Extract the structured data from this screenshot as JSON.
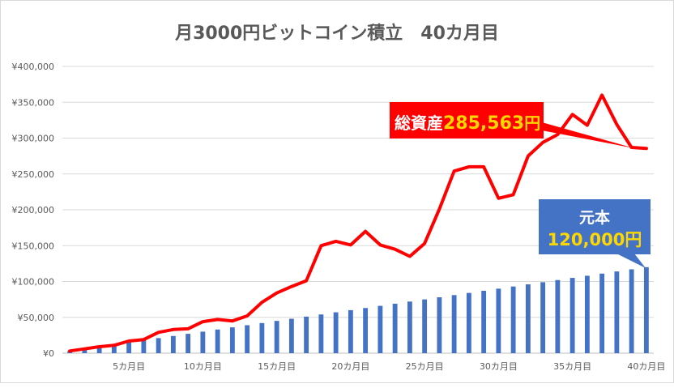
{
  "chart_data": {
    "type": "bar+line",
    "title": "月3000円ビットコイン積立　40カ月目",
    "ylim": [
      0,
      400000
    ],
    "yticks": [
      {
        "value": 0,
        "label": "¥0"
      },
      {
        "value": 50000,
        "label": "¥50,000"
      },
      {
        "value": 100000,
        "label": "¥100,000"
      },
      {
        "value": 150000,
        "label": "¥150,000"
      },
      {
        "value": 200000,
        "label": "¥200,000"
      },
      {
        "value": 250000,
        "label": "¥250,000"
      },
      {
        "value": 300000,
        "label": "¥300,000"
      },
      {
        "value": 350000,
        "label": "¥350,000"
      },
      {
        "value": 400000,
        "label": "¥400,000"
      }
    ],
    "xticks": [
      {
        "month": 5,
        "label": "5カ月目"
      },
      {
        "month": 10,
        "label": "10カ月目"
      },
      {
        "month": 15,
        "label": "15カ月目"
      },
      {
        "month": 20,
        "label": "20カ月目"
      },
      {
        "month": 25,
        "label": "25カ月目"
      },
      {
        "month": 30,
        "label": "30カ月目"
      },
      {
        "month": 35,
        "label": "35カ月目"
      },
      {
        "month": 40,
        "label": "40カ月目"
      }
    ],
    "months": [
      1,
      2,
      3,
      4,
      5,
      6,
      7,
      8,
      9,
      10,
      11,
      12,
      13,
      14,
      15,
      16,
      17,
      18,
      19,
      20,
      21,
      22,
      23,
      24,
      25,
      26,
      27,
      28,
      29,
      30,
      31,
      32,
      33,
      34,
      35,
      36,
      37,
      38,
      39,
      40
    ],
    "series": [
      {
        "type": "bar",
        "color": "#4472C4",
        "values": [
          3000,
          6000,
          9000,
          12000,
          15000,
          18000,
          21000,
          24000,
          27000,
          30000,
          33000,
          36000,
          39000,
          42000,
          45000,
          48000,
          51000,
          54000,
          57000,
          60000,
          63000,
          66000,
          69000,
          72000,
          75000,
          78000,
          81000,
          84000,
          87000,
          90000,
          93000,
          96000,
          99000,
          102000,
          105000,
          108000,
          111000,
          114000,
          117000,
          120000
        ]
      },
      {
        "type": "line",
        "color": "#FF0000",
        "values": [
          3000,
          6000,
          9000,
          11000,
          17000,
          19000,
          29000,
          33000,
          34000,
          44000,
          47000,
          45000,
          52000,
          71000,
          84000,
          93000,
          101000,
          150000,
          156000,
          151000,
          170000,
          151000,
          145000,
          135000,
          153000,
          201000,
          254000,
          260000,
          260000,
          216000,
          221000,
          275000,
          294000,
          305000,
          333000,
          318000,
          360000,
          319000,
          287000,
          285563
        ]
      }
    ],
    "callouts": {
      "total": {
        "label": "総資産",
        "value": "285,563",
        "unit": "円",
        "color": "#FF0000"
      },
      "principal": {
        "label": "元本",
        "value": "120,000",
        "unit": "円",
        "color": "#4472C4"
      }
    }
  }
}
